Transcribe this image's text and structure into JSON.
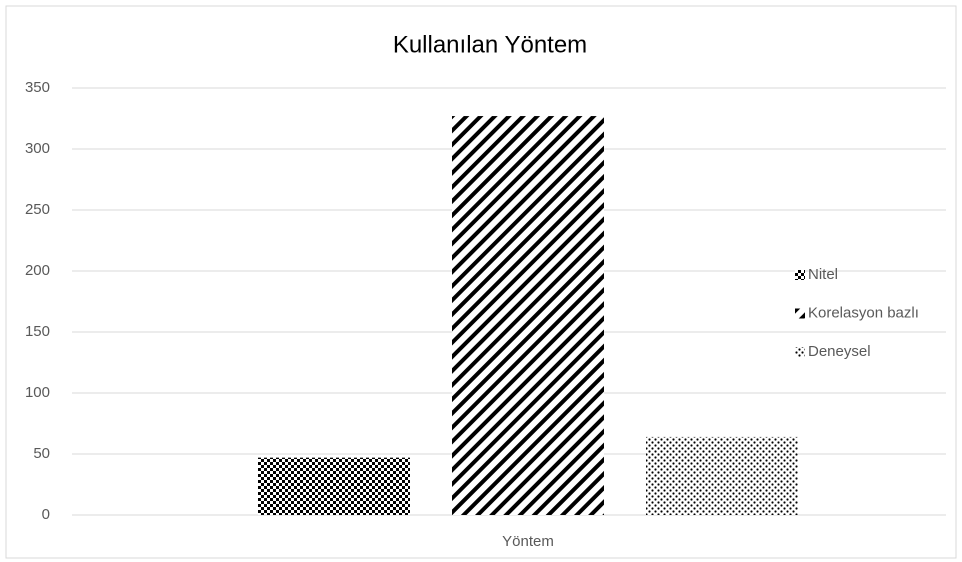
{
  "chart_data": {
    "type": "bar",
    "title": "Kullanılan Yöntem",
    "categories": [
      "Yöntem"
    ],
    "series": [
      {
        "name": "Nitel",
        "color": "#000000",
        "pattern": "checker",
        "values": [
          47
        ]
      },
      {
        "name": "Korelasyon bazlı",
        "color": "#000000",
        "pattern": "diagonal",
        "values": [
          327
        ]
      },
      {
        "name": "Deneysel",
        "color": "#000000",
        "pattern": "dots",
        "values": [
          64
        ]
      }
    ],
    "ylim": [
      0,
      350
    ],
    "yticks": [
      0,
      50,
      100,
      150,
      200,
      250,
      300,
      350
    ],
    "grid": true,
    "legend": "right"
  }
}
